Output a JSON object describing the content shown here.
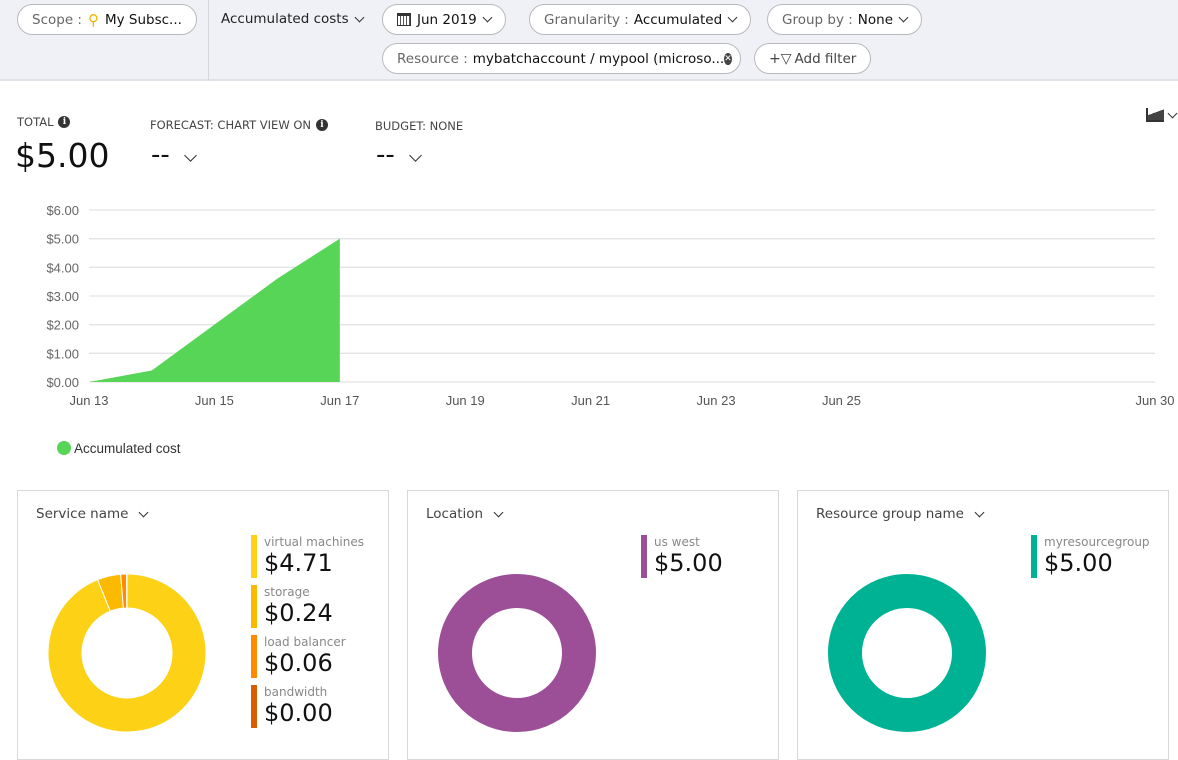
{
  "toolbar": {
    "scope_label": "Scope :",
    "scope_value": "My Subsc...",
    "view": "Accumulated costs",
    "date": "Jun 2019",
    "granularity_label": "Granularity :",
    "granularity_value": "Accumulated",
    "groupby_label": "Group by :",
    "groupby_value": "None",
    "filter_label": "Resource :",
    "filter_value": "mybatchaccount / mypool (microso...",
    "add_filter": "Add filter"
  },
  "kpis": {
    "total_label": "TOTAL",
    "total_value": "$5.00",
    "forecast_label": "FORECAST: CHART VIEW ON",
    "forecast_value": "--",
    "budget_label": "BUDGET: NONE",
    "budget_value": "--"
  },
  "chart_data": {
    "type": "area",
    "x": [
      "Jun 13",
      "Jun 14",
      "Jun 15",
      "Jun 16",
      "Jun 17"
    ],
    "series": [
      {
        "name": "Accumulated cost",
        "values": [
          0,
          0.4,
          2.0,
          3.6,
          5.0
        ],
        "color": "#57d557"
      }
    ],
    "x_ticks": [
      "Jun 13",
      "Jun 15",
      "Jun 17",
      "Jun 19",
      "Jun 21",
      "Jun 23",
      "Jun 25",
      "Jun 30"
    ],
    "x_range": [
      "Jun 13",
      "Jun 30"
    ],
    "y_ticks": [
      "$0.00",
      "$1.00",
      "$2.00",
      "$3.00",
      "$4.00",
      "$5.00",
      "$6.00"
    ],
    "ylim": [
      0,
      6
    ],
    "grid": true,
    "legend": "bottom-left"
  },
  "cards": [
    {
      "header": "Service name",
      "items": [
        {
          "name": "virtual machines",
          "value": "$4.71",
          "amount": 4.71,
          "color": "#fcd116"
        },
        {
          "name": "storage",
          "value": "$0.24",
          "amount": 0.24,
          "color": "#fbb900"
        },
        {
          "name": "load balancer",
          "value": "$0.06",
          "amount": 0.06,
          "color": "#ff8c00"
        },
        {
          "name": "bandwidth",
          "value": "$0.00",
          "amount": 0.004,
          "color": "#d85c00"
        }
      ]
    },
    {
      "header": "Location",
      "items": [
        {
          "name": "us west",
          "value": "$5.00",
          "amount": 5,
          "color": "#9c4f96"
        }
      ]
    },
    {
      "header": "Resource group name",
      "items": [
        {
          "name": "myresourcegroup",
          "value": "$5.00",
          "amount": 5,
          "color": "#00b294"
        }
      ]
    }
  ]
}
